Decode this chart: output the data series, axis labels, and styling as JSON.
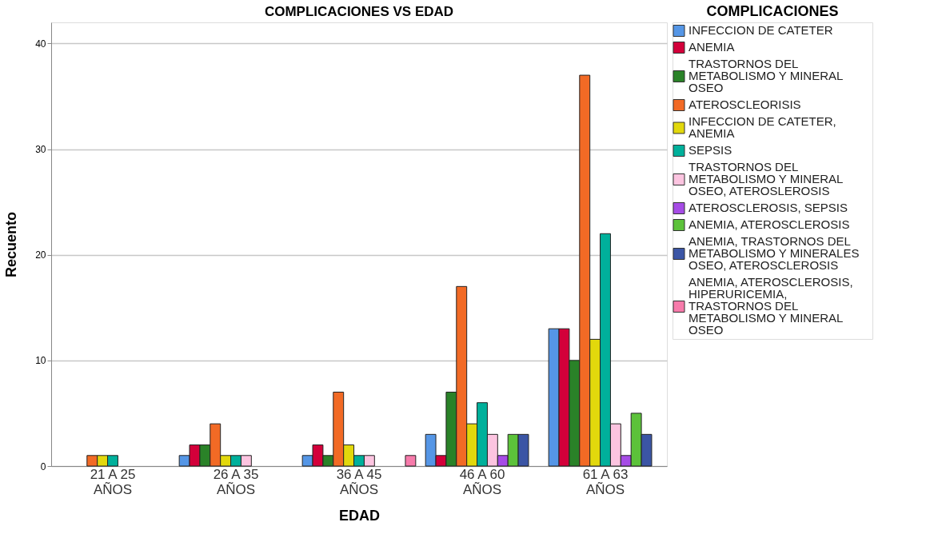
{
  "chart_data": {
    "type": "bar",
    "title": "COMPLICACIONES VS EDAD",
    "xlabel": "EDAD",
    "ylabel": "Recuento",
    "legend_title": "COMPLICACIONES",
    "categories": [
      "21 A 25 AÑOS",
      "26 A 35 AÑOS",
      "36 A 45 AÑOS",
      "46 A 60 AÑOS",
      "61 A 63 AÑOS"
    ],
    "series": [
      {
        "name": "INFECCION DE CATETER",
        "color": "#5596e6",
        "values": [
          null,
          1,
          1,
          3,
          13
        ]
      },
      {
        "name": "ANEMIA",
        "color": "#d3003a",
        "values": [
          null,
          2,
          2,
          1,
          13
        ]
      },
      {
        "name": "TRASTORNOS DEL METABOLISMO Y MINERAL OSEO",
        "color": "#2a8228",
        "values": [
          null,
          2,
          1,
          7,
          10
        ]
      },
      {
        "name": "ATEROSCLEORISIS",
        "color": "#f26a25",
        "values": [
          1,
          4,
          7,
          17,
          37
        ]
      },
      {
        "name": "INFECCION DE CATETER, ANEMIA",
        "color": "#e2d80c",
        "values": [
          1,
          1,
          2,
          4,
          12
        ]
      },
      {
        "name": "SEPSIS",
        "color": "#00b09b",
        "values": [
          1,
          1,
          1,
          6,
          22
        ]
      },
      {
        "name": "TRASTORNOS DEL METABOLISMO Y  MINERAL OSEO, ATEROSLEROSIS",
        "color": "#fcc4e0",
        "values": [
          null,
          1,
          1,
          3,
          4
        ]
      },
      {
        "name": "ATEROSCLEROSIS, SEPSIS",
        "color": "#a64ce6",
        "values": [
          null,
          null,
          null,
          1,
          1
        ]
      },
      {
        "name": "ANEMIA, ATEROSCLEROSIS",
        "color": "#5cc23a",
        "values": [
          null,
          null,
          null,
          3,
          5
        ]
      },
      {
        "name": "ANEMIA, TRASTORNOS DEL METABOLISMO Y MINERALES OSEO, ATEROSCLEROSIS",
        "color": "#3b55a5",
        "values": [
          null,
          null,
          null,
          3,
          3
        ]
      },
      {
        "name": "ANEMIA, ATEROSCLEROSIS, HIPERURICEMIA, TRASTORNOS DEL METABOLISMO Y MINERAL OSEO",
        "color": "#f77bab",
        "values": [
          null,
          null,
          1,
          null,
          null
        ]
      }
    ],
    "ylim": [
      0,
      42
    ],
    "yticks": [
      0,
      10,
      20,
      30,
      40
    ],
    "grid": "y",
    "legend": "right"
  }
}
